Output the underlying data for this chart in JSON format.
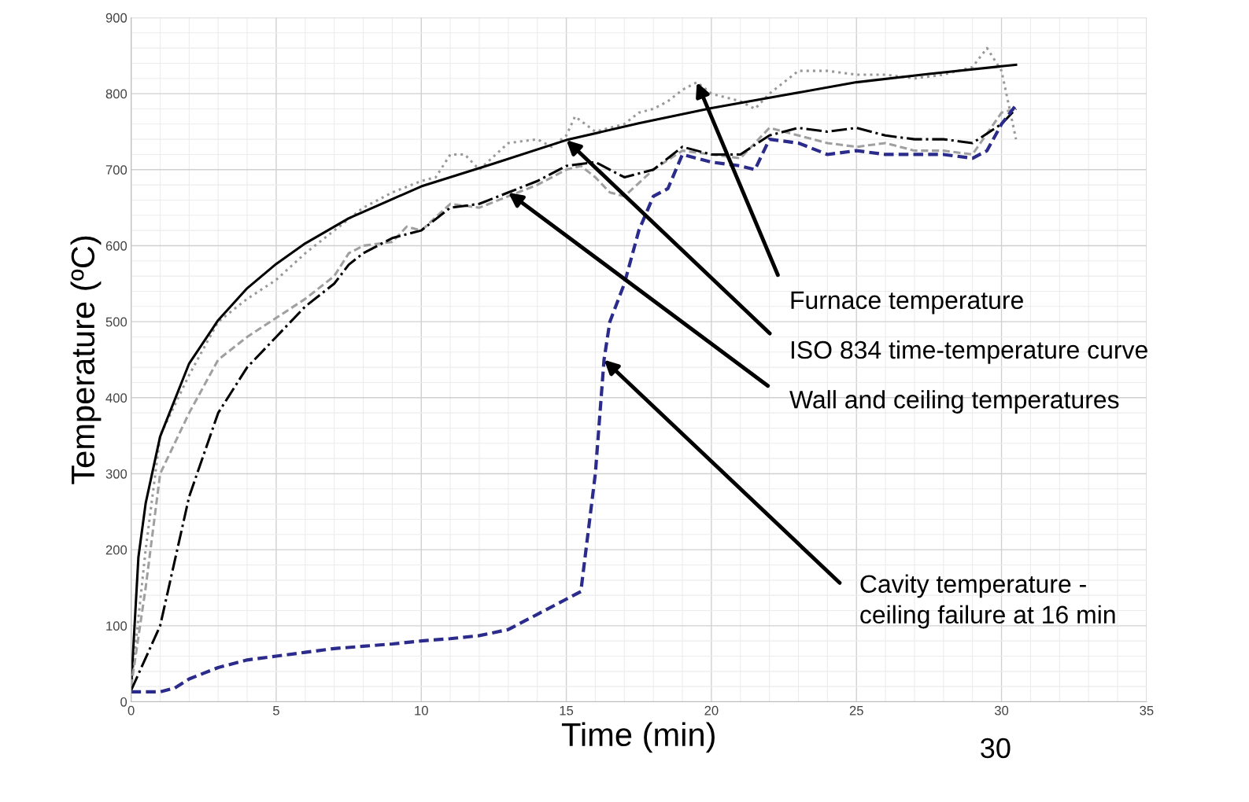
{
  "chart_data": {
    "type": "line",
    "xlabel": "Time (min)",
    "ylabel": "Temperature (ºC)",
    "xlim": [
      0,
      35
    ],
    "ylim": [
      0,
      900
    ],
    "xticks": [
      0,
      5,
      10,
      15,
      20,
      25,
      30,
      35
    ],
    "yticks": [
      0,
      100,
      200,
      300,
      400,
      500,
      600,
      700,
      800,
      900
    ],
    "grid": true,
    "marker": "none",
    "series": [
      {
        "color": "#999999",
        "line_style": "dotted",
        "x": [
          0,
          0.5,
          1,
          2,
          3,
          4,
          5,
          6,
          7,
          8,
          9,
          10,
          10.5,
          11,
          11.5,
          12,
          13,
          14,
          14.5,
          15,
          15.3,
          16,
          16.5,
          17,
          17.5,
          18,
          18.5,
          19,
          19.5,
          20,
          21,
          21.5,
          22,
          23,
          24,
          25,
          26,
          27,
          28,
          29,
          29.5,
          30,
          30.5
        ],
        "values": [
          20,
          200,
          350,
          430,
          500,
          530,
          555,
          590,
          620,
          650,
          670,
          685,
          690,
          720,
          720,
          700,
          735,
          740,
          730,
          745,
          770,
          750,
          755,
          760,
          775,
          780,
          790,
          805,
          815,
          800,
          790,
          780,
          800,
          830,
          830,
          825,
          825,
          820,
          825,
          835,
          860,
          830,
          740
        ]
      },
      {
        "color": "#000000",
        "line_style": "solid",
        "x": [
          0,
          0.25,
          0.5,
          1,
          2,
          3,
          4,
          5,
          6,
          7.5,
          10,
          12.5,
          15,
          17.5,
          20,
          22.5,
          25,
          27.5,
          30.5
        ],
        "values": [
          20,
          190,
          261,
          349,
          445,
          502,
          544,
          576,
          603,
          636,
          678,
          708,
          739,
          761,
          781,
          798,
          815,
          826,
          838
        ]
      },
      {
        "color": "#a0a0a0",
        "line_style": "dashed",
        "x": [
          0,
          0.5,
          1,
          2,
          3,
          4,
          5,
          6,
          7,
          7.5,
          8,
          9,
          9.5,
          10,
          11,
          12,
          13,
          14,
          15,
          15.5,
          16,
          16.5,
          17,
          18,
          19,
          20,
          21,
          22,
          23,
          24,
          25,
          26,
          27,
          28,
          29,
          30,
          30.5
        ],
        "values": [
          20,
          150,
          300,
          380,
          450,
          480,
          505,
          530,
          560,
          590,
          600,
          605,
          625,
          620,
          655,
          650,
          665,
          680,
          700,
          705,
          690,
          670,
          665,
          700,
          725,
          720,
          715,
          755,
          745,
          735,
          730,
          735,
          725,
          725,
          720,
          775,
          780
        ]
      },
      {
        "color": "#000000",
        "line_style": "dashdot",
        "x": [
          0,
          1,
          2,
          3,
          4,
          5,
          6,
          7,
          7.5,
          8,
          9,
          10,
          11,
          12,
          13,
          14,
          15,
          16,
          17,
          18,
          19,
          20,
          21,
          22,
          23,
          24,
          25,
          26,
          27,
          28,
          29,
          30,
          30.5
        ],
        "values": [
          15,
          100,
          270,
          380,
          440,
          480,
          520,
          550,
          575,
          590,
          610,
          620,
          650,
          655,
          670,
          685,
          705,
          710,
          690,
          700,
          730,
          720,
          720,
          745,
          755,
          750,
          755,
          745,
          740,
          740,
          735,
          760,
          780
        ]
      },
      {
        "color": "#2b2b8c",
        "line_style": "dashed",
        "x": [
          0,
          1,
          1.5,
          2,
          3,
          4,
          5,
          6,
          7,
          8,
          9,
          10,
          11,
          12,
          13,
          14,
          15,
          15.5,
          16,
          16.3,
          16.5,
          17,
          17.5,
          18,
          18.5,
          19,
          20,
          21,
          21.5,
          22,
          23,
          24,
          25,
          26,
          27,
          28,
          29,
          29.5,
          30,
          30.5
        ],
        "values": [
          13,
          13,
          18,
          30,
          45,
          55,
          60,
          65,
          70,
          73,
          76,
          80,
          83,
          87,
          95,
          115,
          135,
          145,
          300,
          450,
          500,
          550,
          620,
          665,
          675,
          720,
          710,
          705,
          700,
          740,
          735,
          720,
          725,
          720,
          720,
          720,
          715,
          725,
          760,
          785
        ]
      }
    ],
    "annotations": [
      {
        "text": "Furnace temperature",
        "x": 19.5,
        "y": 815
      },
      {
        "text": "ISO 834 time-temperature curve",
        "x": 15,
        "y": 739
      },
      {
        "text": "Wall and ceiling temperatures",
        "x": 13,
        "y": 670
      },
      {
        "text": "Cavity temperature -\nceiling failure at 16 min",
        "x": 16.3,
        "y": 450
      },
      "30"
    ]
  }
}
